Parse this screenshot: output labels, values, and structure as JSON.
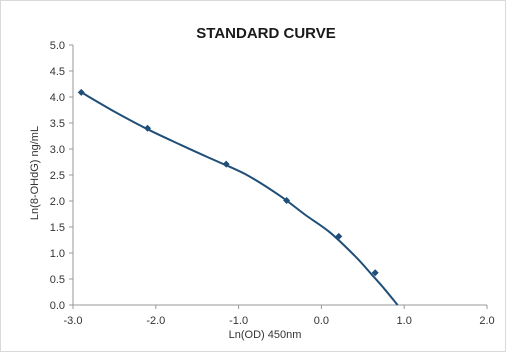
{
  "chart_data": {
    "type": "scatter",
    "title": "STANDARD CURVE",
    "xlabel": "Ln(OD) 450nm",
    "ylabel": "Ln(8-OHdG) ng/mL",
    "xlim": [
      -3.0,
      2.0
    ],
    "ylim": [
      0.0,
      5.0
    ],
    "x_ticks": [
      "-3.0",
      "-2.0",
      "-1.0",
      "0.0",
      "1.0",
      "2.0"
    ],
    "y_ticks": [
      "0.0",
      "0.5",
      "1.0",
      "1.5",
      "2.0",
      "2.5",
      "3.0",
      "3.5",
      "4.0",
      "4.5",
      "5.0"
    ],
    "x_tick_values": [
      -3,
      -2,
      -1,
      0,
      1,
      2
    ],
    "y_tick_values": [
      0,
      0.5,
      1,
      1.5,
      2,
      2.5,
      3,
      3.5,
      4,
      4.5,
      5
    ],
    "grid": false,
    "series": [
      {
        "points": [
          {
            "x": -2.9,
            "y": 4.09
          },
          {
            "x": -2.1,
            "y": 3.4
          },
          {
            "x": -1.15,
            "y": 2.71
          },
          {
            "x": -0.42,
            "y": 2.01
          },
          {
            "x": 0.21,
            "y": 1.32
          },
          {
            "x": 0.65,
            "y": 0.62
          }
        ]
      }
    ],
    "trendline": {
      "x": [
        -2.9,
        -2.5,
        -2.1,
        -1.7,
        -1.3,
        -0.9,
        -0.5,
        -0.2,
        0.1,
        0.4,
        0.6,
        0.75,
        0.92
      ],
      "y": [
        4.09,
        3.72,
        3.38,
        3.08,
        2.79,
        2.5,
        2.1,
        1.74,
        1.4,
        0.95,
        0.6,
        0.33,
        0.0
      ]
    },
    "colors": {
      "series": "#1f4e79",
      "axis": "#999999"
    }
  }
}
